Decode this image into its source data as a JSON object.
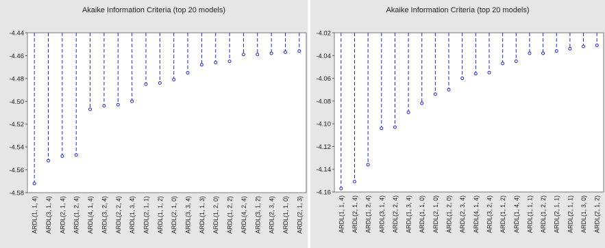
{
  "colors": {
    "panel_background": "#e6e6e6",
    "plot_background": "#ffffff",
    "series": "#1f22cc",
    "axis_text": "#222222"
  },
  "chart_data": [
    {
      "type": "line",
      "title": "Akaike Information Criteria (top 20 models)",
      "xlabel": "",
      "ylabel": "",
      "ylim": [
        -4.58,
        -4.44
      ],
      "yticks": [
        "-4.44",
        "-4.46",
        "-4.48",
        "-4.50",
        "-4.52",
        "-4.54",
        "-4.56",
        "-4.58"
      ],
      "grid": false,
      "legend": "none",
      "categories": [
        "ARDL(1, 1, 4)",
        "ARDL(3, 1, 4)",
        "ARDL(2, 1, 4)",
        "ARDL(1, 2, 4)",
        "ARDL(4, 1, 4)",
        "ARDL(3, 2, 4)",
        "ARDL(2, 2, 4)",
        "ARDL(1, 3, 4)",
        "ARDL(2, 1, 1)",
        "ARDL(1, 1, 2)",
        "ARDL(2, 1, 0)",
        "ARDL(3, 3, 4)",
        "ARDL(1, 1, 3)",
        "ARDL(1, 2, 0)",
        "ARDL(1, 2, 2)",
        "ARDL(4, 2, 4)",
        "ARDL(3, 1, 2)",
        "ARDL(2, 3, 4)",
        "ARDL(1, 1, 0)",
        "ARDL(2, 1, 3)"
      ],
      "values": [
        -4.572,
        -4.552,
        -4.548,
        -4.547,
        -4.507,
        -4.504,
        -4.503,
        -4.5,
        -4.485,
        -4.484,
        -4.481,
        -4.475,
        -4.468,
        -4.466,
        -4.465,
        -4.459,
        -4.459,
        -4.458,
        -4.457,
        -4.456
      ]
    },
    {
      "type": "line",
      "title": "Akaike Information Criteria (top 20 models)",
      "xlabel": "",
      "ylabel": "",
      "ylim": [
        -4.16,
        -4.02
      ],
      "yticks": [
        "-4.02",
        "-4.04",
        "-4.06",
        "-4.08",
        "-4.10",
        "-4.12",
        "-4.14",
        "-4.16"
      ],
      "grid": false,
      "legend": "none",
      "categories": [
        "ARDL(1, 1, 4)",
        "ARDL(2, 1, 4)",
        "ARDL(1, 2, 4)",
        "ARDL(3, 1, 4)",
        "ARDL(2, 2, 4)",
        "ARDL(1, 3, 4)",
        "ARDL(1, 1, 0)",
        "ARDL(2, 1, 0)",
        "ARDL(1, 2, 0)",
        "ARDL(2, 3, 4)",
        "ARDL(4, 1, 4)",
        "ARDL(3, 2, 4)",
        "ARDL(1, 1, 2)",
        "ARDL(1, 4, 4)",
        "ARDL(1, 1, 1)",
        "ARDL(1, 2, 2)",
        "ARDL(2, 1, 1)",
        "ARDL(2, 1, 1)",
        "ARDL(1, 3, 0)",
        "ARDL(2, 1, 2)"
      ],
      "values": [
        -4.157,
        -4.151,
        -4.136,
        -4.104,
        -4.103,
        -4.09,
        -4.082,
        -4.074,
        -4.07,
        -4.06,
        -4.056,
        -4.055,
        -4.047,
        -4.045,
        -4.038,
        -4.038,
        -4.036,
        -4.034,
        -4.032,
        -4.031
      ]
    }
  ]
}
